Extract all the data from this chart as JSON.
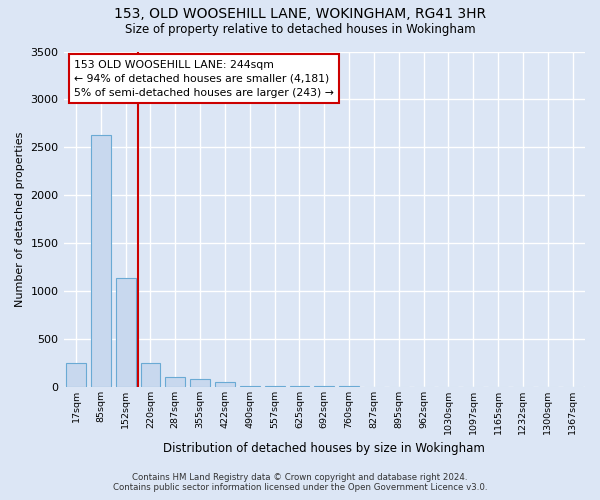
{
  "title": "153, OLD WOOSEHILL LANE, WOKINGHAM, RG41 3HR",
  "subtitle": "Size of property relative to detached houses in Wokingham",
  "xlabel": "Distribution of detached houses by size in Wokingham",
  "ylabel": "Number of detached properties",
  "bar_labels": [
    "17sqm",
    "85sqm",
    "152sqm",
    "220sqm",
    "287sqm",
    "355sqm",
    "422sqm",
    "490sqm",
    "557sqm",
    "625sqm",
    "692sqm",
    "760sqm",
    "827sqm",
    "895sqm",
    "962sqm",
    "1030sqm",
    "1097sqm",
    "1165sqm",
    "1232sqm",
    "1300sqm",
    "1367sqm"
  ],
  "bar_values": [
    248,
    2630,
    1130,
    248,
    100,
    78,
    50,
    5,
    2,
    1,
    1,
    1,
    0,
    0,
    0,
    0,
    0,
    0,
    0,
    0,
    0
  ],
  "bar_color": "#c8d8ee",
  "bar_edge_color": "#6aaad4",
  "ylim": [
    0,
    3500
  ],
  "property_line_x": 2.5,
  "annotation_text": "153 OLD WOOSEHILL LANE: 244sqm\n← 94% of detached houses are smaller (4,181)\n5% of semi-detached houses are larger (243) →",
  "annotation_box_color": "#ffffff",
  "annotation_box_edge": "#cc0000",
  "vline_color": "#cc0000",
  "footer": "Contains HM Land Registry data © Crown copyright and database right 2024.\nContains public sector information licensed under the Open Government Licence v3.0.",
  "background_color": "#dce6f5",
  "plot_bg_color": "#dce6f5",
  "grid_color": "#ffffff"
}
